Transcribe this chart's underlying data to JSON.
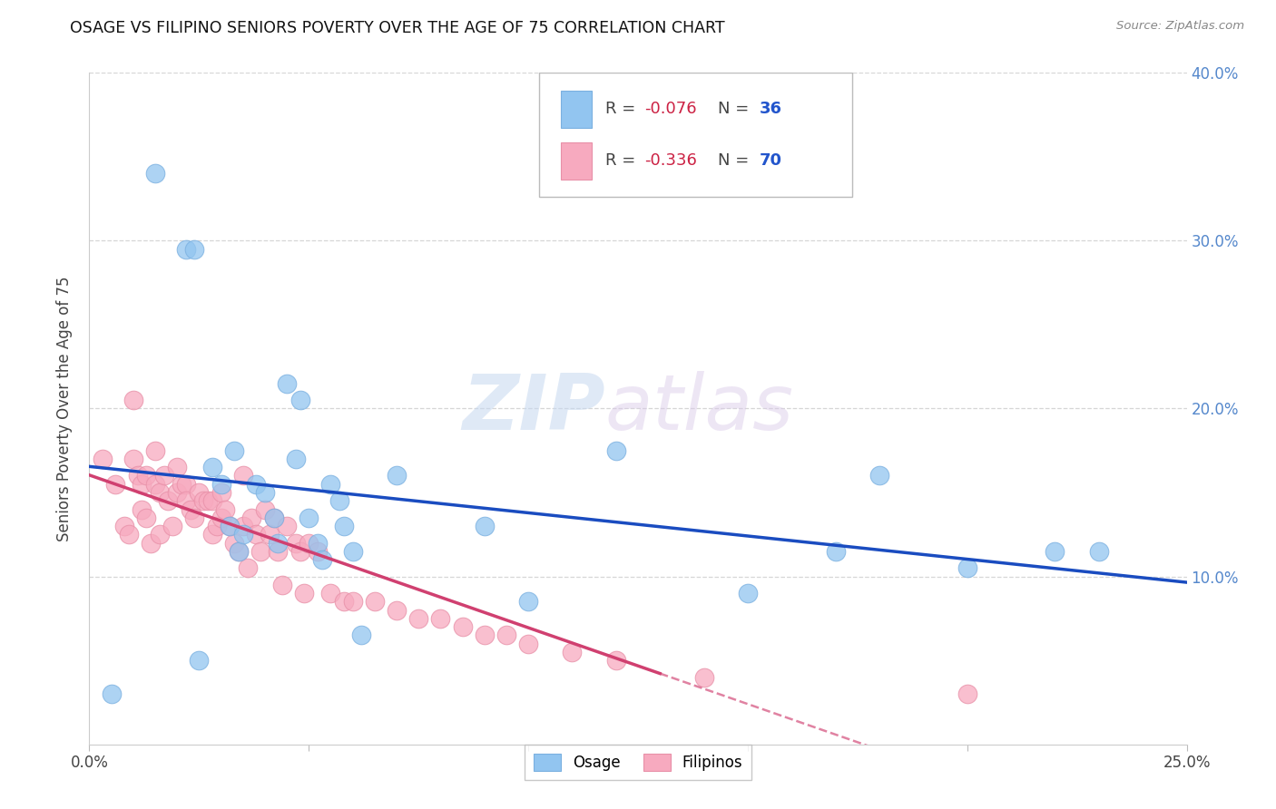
{
  "title": "OSAGE VS FILIPINO SENIORS POVERTY OVER THE AGE OF 75 CORRELATION CHART",
  "source": "Source: ZipAtlas.com",
  "ylabel": "Seniors Poverty Over the Age of 75",
  "xlim": [
    0.0,
    0.25
  ],
  "ylim": [
    0.0,
    0.4
  ],
  "xticks": [
    0.0,
    0.05,
    0.1,
    0.15,
    0.2,
    0.25
  ],
  "xticklabels": [
    "0.0%",
    "",
    "",
    "",
    "",
    "25.0%"
  ],
  "yticks_right": [
    0.1,
    0.2,
    0.3,
    0.4
  ],
  "yticklabels_right": [
    "10.0%",
    "20.0%",
    "30.0%",
    "40.0%"
  ],
  "legend_blue_r": "-0.076",
  "legend_blue_n": "36",
  "legend_pink_r": "-0.336",
  "legend_pink_n": "70",
  "blue_color": "#92C5F0",
  "pink_color": "#F7AABF",
  "blue_edge": "#7AB0E0",
  "pink_edge": "#E890A8",
  "trend_blue": "#1A4CC0",
  "trend_pink": "#D04070",
  "watermark_zip": "ZIP",
  "watermark_atlas": "atlas",
  "osage_x": [
    0.005,
    0.015,
    0.022,
    0.024,
    0.025,
    0.028,
    0.03,
    0.032,
    0.033,
    0.034,
    0.035,
    0.038,
    0.04,
    0.042,
    0.043,
    0.045,
    0.047,
    0.048,
    0.05,
    0.052,
    0.053,
    0.055,
    0.057,
    0.058,
    0.06,
    0.062,
    0.07,
    0.09,
    0.1,
    0.12,
    0.15,
    0.17,
    0.18,
    0.2,
    0.22,
    0.23
  ],
  "osage_y": [
    0.03,
    0.34,
    0.295,
    0.295,
    0.05,
    0.165,
    0.155,
    0.13,
    0.175,
    0.115,
    0.125,
    0.155,
    0.15,
    0.135,
    0.12,
    0.215,
    0.17,
    0.205,
    0.135,
    0.12,
    0.11,
    0.155,
    0.145,
    0.13,
    0.115,
    0.065,
    0.16,
    0.13,
    0.085,
    0.175,
    0.09,
    0.115,
    0.16,
    0.105,
    0.115,
    0.115
  ],
  "filipino_x": [
    0.003,
    0.006,
    0.008,
    0.009,
    0.01,
    0.01,
    0.011,
    0.012,
    0.012,
    0.013,
    0.013,
    0.014,
    0.015,
    0.015,
    0.016,
    0.016,
    0.017,
    0.018,
    0.019,
    0.02,
    0.02,
    0.021,
    0.022,
    0.022,
    0.023,
    0.024,
    0.025,
    0.026,
    0.027,
    0.028,
    0.028,
    0.029,
    0.03,
    0.03,
    0.031,
    0.032,
    0.033,
    0.034,
    0.035,
    0.035,
    0.036,
    0.037,
    0.038,
    0.039,
    0.04,
    0.041,
    0.042,
    0.043,
    0.044,
    0.045,
    0.047,
    0.048,
    0.049,
    0.05,
    0.052,
    0.055,
    0.058,
    0.06,
    0.065,
    0.07,
    0.075,
    0.08,
    0.085,
    0.09,
    0.095,
    0.1,
    0.11,
    0.12,
    0.14,
    0.2
  ],
  "filipino_y": [
    0.17,
    0.155,
    0.13,
    0.125,
    0.205,
    0.17,
    0.16,
    0.155,
    0.14,
    0.16,
    0.135,
    0.12,
    0.175,
    0.155,
    0.15,
    0.125,
    0.16,
    0.145,
    0.13,
    0.165,
    0.15,
    0.155,
    0.155,
    0.145,
    0.14,
    0.135,
    0.15,
    0.145,
    0.145,
    0.145,
    0.125,
    0.13,
    0.15,
    0.135,
    0.14,
    0.13,
    0.12,
    0.115,
    0.16,
    0.13,
    0.105,
    0.135,
    0.125,
    0.115,
    0.14,
    0.125,
    0.135,
    0.115,
    0.095,
    0.13,
    0.12,
    0.115,
    0.09,
    0.12,
    0.115,
    0.09,
    0.085,
    0.085,
    0.085,
    0.08,
    0.075,
    0.075,
    0.07,
    0.065,
    0.065,
    0.06,
    0.055,
    0.05,
    0.04,
    0.03
  ],
  "trend_blue_x0": 0.0,
  "trend_blue_x1": 0.25,
  "trend_pink_solid_end": 0.13,
  "trend_pink_x1": 0.25
}
